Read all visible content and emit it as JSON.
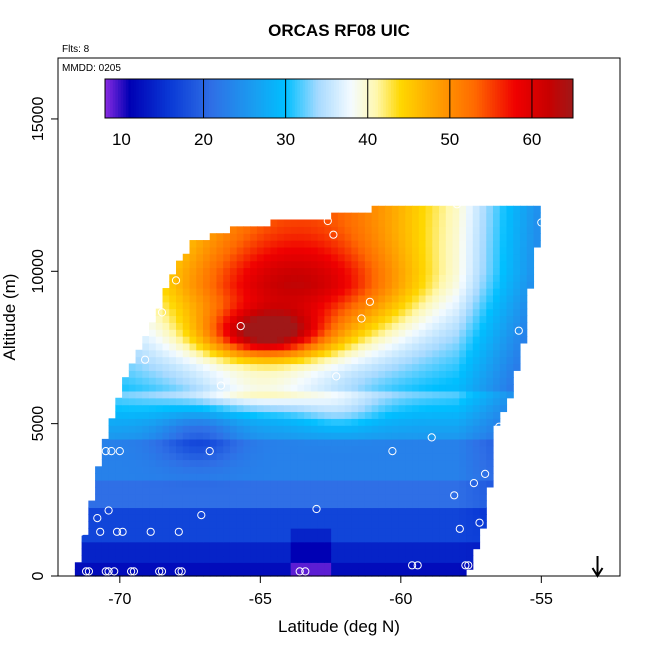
{
  "chart_data": {
    "type": "heatmap",
    "title": "ORCAS RF08 UIC",
    "annotations": {
      "flights": "Flts: 8",
      "mmdd": "MMDD: 0205"
    },
    "xlabel": "Latitude (deg N)",
    "ylabel": "Altitude (m)",
    "xlim": [
      -72.2,
      -52.2
    ],
    "ylim": [
      0,
      17000
    ],
    "x_ticks": [
      -70,
      -65,
      -60,
      -55
    ],
    "x_tick_labels": [
      "-70",
      "-65",
      "-60",
      "-55"
    ],
    "y_ticks": [
      0,
      5000,
      10000,
      15000
    ],
    "y_tick_labels": [
      "0",
      "5000",
      "10000",
      "15000"
    ],
    "colorbar": {
      "range": [
        8,
        65
      ],
      "ticks": [
        10,
        20,
        30,
        40,
        50,
        60
      ],
      "tick_labels": [
        "10",
        "20",
        "30",
        "40",
        "50",
        "60"
      ],
      "colors": [
        {
          "v": 8,
          "c": "#8a2be2"
        },
        {
          "v": 11,
          "c": "#0000b4"
        },
        {
          "v": 16,
          "c": "#0a3ad6"
        },
        {
          "v": 21,
          "c": "#2f6fe6"
        },
        {
          "v": 26,
          "c": "#1a9cf0"
        },
        {
          "v": 30,
          "c": "#00bfff"
        },
        {
          "v": 34,
          "c": "#a8daff"
        },
        {
          "v": 38,
          "c": "#f4fbff"
        },
        {
          "v": 41,
          "c": "#fff8b0"
        },
        {
          "v": 44,
          "c": "#ffd700"
        },
        {
          "v": 48,
          "c": "#ffa500"
        },
        {
          "v": 53,
          "c": "#ff6a00"
        },
        {
          "v": 58,
          "c": "#f00000"
        },
        {
          "v": 62,
          "c": "#c80000"
        },
        {
          "v": 65,
          "c": "#a01818"
        }
      ]
    },
    "field": {
      "x_range": [
        -71.6,
        -55.0
      ],
      "cell_dx": 0.24,
      "cell_dy": 225,
      "left_edge": [
        [
          0,
          -71.6
        ],
        [
          1400,
          -71.2
        ],
        [
          3000,
          -70.9
        ],
        [
          4300,
          -70.6
        ],
        [
          6000,
          -70.0
        ],
        [
          7200,
          -69.5
        ],
        [
          8600,
          -68.7
        ],
        [
          9800,
          -68.2
        ],
        [
          11000,
          -67.4
        ],
        [
          11500,
          -65.5
        ],
        [
          11800,
          -62.5
        ],
        [
          12000,
          -61.0
        ]
      ],
      "right_edge": [
        [
          0,
          -57.6
        ],
        [
          1800,
          -57.0
        ],
        [
          3300,
          -56.8
        ],
        [
          5000,
          -56.6
        ],
        [
          6200,
          -56.0
        ],
        [
          7800,
          -55.6
        ],
        [
          9500,
          -55.4
        ],
        [
          11600,
          -55.0
        ],
        [
          12000,
          -55.1
        ]
      ],
      "anomalies": [
        {
          "x": -64.8,
          "y": 7950,
          "sx": 2.0,
          "sy": 750,
          "a": 21
        },
        {
          "x": -63.5,
          "y": 9400,
          "sx": 3.5,
          "sy": 1500,
          "a": 9
        },
        {
          "x": -65.0,
          "y": 6100,
          "sx": 2.2,
          "sy": 600,
          "a": 5
        },
        {
          "x": -67.2,
          "y": 4600,
          "sx": 1.4,
          "sy": 900,
          "a": -6
        },
        {
          "x": -62.2,
          "y": 5400,
          "sx": 1.5,
          "sy": 700,
          "a": 4
        }
      ]
    },
    "points": [
      {
        "x": -71.2,
        "y": 150
      },
      {
        "x": -71.1,
        "y": 150
      },
      {
        "x": -70.5,
        "y": 150
      },
      {
        "x": -70.4,
        "y": 150
      },
      {
        "x": -70.2,
        "y": 150
      },
      {
        "x": -69.6,
        "y": 150
      },
      {
        "x": -69.5,
        "y": 150
      },
      {
        "x": -68.6,
        "y": 150
      },
      {
        "x": -68.5,
        "y": 150
      },
      {
        "x": -67.9,
        "y": 150
      },
      {
        "x": -67.8,
        "y": 150
      },
      {
        "x": -63.6,
        "y": 150
      },
      {
        "x": -63.4,
        "y": 150
      },
      {
        "x": -59.6,
        "y": 350
      },
      {
        "x": -59.4,
        "y": 350
      },
      {
        "x": -57.7,
        "y": 350
      },
      {
        "x": -57.6,
        "y": 350
      },
      {
        "x": -71.4,
        "y": 1450
      },
      {
        "x": -70.7,
        "y": 1450
      },
      {
        "x": -70.1,
        "y": 1450
      },
      {
        "x": -69.9,
        "y": 1450
      },
      {
        "x": -68.9,
        "y": 1450
      },
      {
        "x": -67.9,
        "y": 1450
      },
      {
        "x": -57.9,
        "y": 1550
      },
      {
        "x": -57.2,
        "y": 1750
      },
      {
        "x": -70.8,
        "y": 1900
      },
      {
        "x": -67.1,
        "y": 2000
      },
      {
        "x": -70.4,
        "y": 2150
      },
      {
        "x": -63.0,
        "y": 2200
      },
      {
        "x": -58.1,
        "y": 2650
      },
      {
        "x": -57.4,
        "y": 3050
      },
      {
        "x": -57.0,
        "y": 3350
      },
      {
        "x": -70.5,
        "y": 4100
      },
      {
        "x": -70.3,
        "y": 4100
      },
      {
        "x": -70.0,
        "y": 4100
      },
      {
        "x": -66.8,
        "y": 4100
      },
      {
        "x": -60.3,
        "y": 4100
      },
      {
        "x": -58.9,
        "y": 4550
      },
      {
        "x": -56.5,
        "y": 4900
      },
      {
        "x": -66.4,
        "y": 6250
      },
      {
        "x": -62.3,
        "y": 6550
      },
      {
        "x": -69.1,
        "y": 7100
      },
      {
        "x": -55.8,
        "y": 8050
      },
      {
        "x": -65.7,
        "y": 8200
      },
      {
        "x": -61.4,
        "y": 8450
      },
      {
        "x": -68.5,
        "y": 8650
      },
      {
        "x": -61.1,
        "y": 9000
      },
      {
        "x": -68.0,
        "y": 9700
      },
      {
        "x": -62.4,
        "y": 11200
      },
      {
        "x": -62.6,
        "y": 11650
      },
      {
        "x": -55.0,
        "y": 11600
      },
      {
        "x": -58.0,
        "y": 12200
      }
    ],
    "marker": {
      "x": -53.0,
      "label": "↓"
    }
  }
}
